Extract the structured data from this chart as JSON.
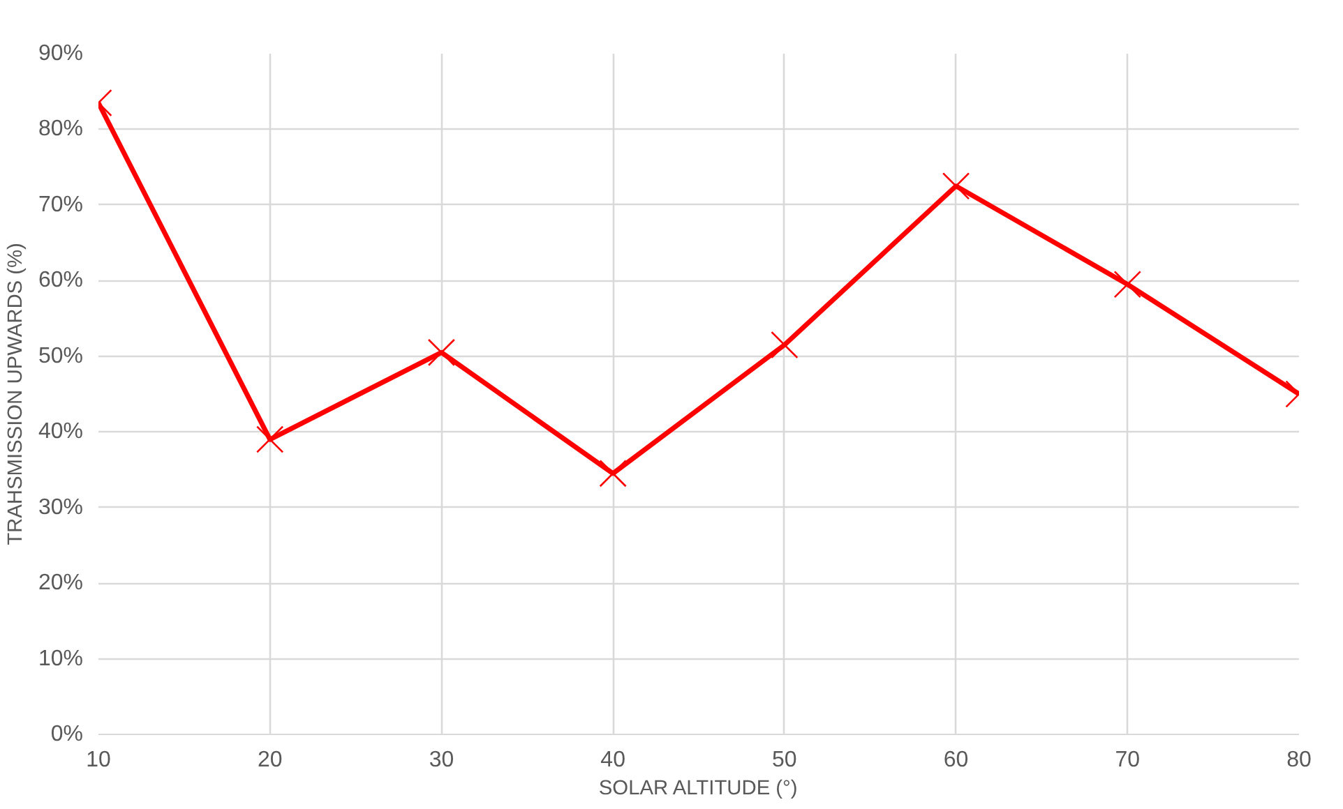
{
  "chart_data": {
    "type": "line",
    "xlabel": "SOLAR ALTITUDE (°)",
    "ylabel": "TRAHSMISSION UPWARDS (%)",
    "x": [
      10,
      20,
      30,
      40,
      50,
      60,
      70,
      80
    ],
    "series": [
      {
        "color": "#ff0000",
        "values": [
          83.5,
          39,
          50.5,
          34.5,
          51.5,
          72.5,
          59.5,
          45
        ]
      }
    ],
    "xlim": [
      10,
      80
    ],
    "xticks": [
      10,
      20,
      30,
      40,
      50,
      60,
      70,
      80
    ],
    "ylim": [
      0,
      90
    ],
    "yticks": [
      {
        "value": 0,
        "label": "0%"
      },
      {
        "value": 10,
        "label": "10%"
      },
      {
        "value": 20,
        "label": "20%"
      },
      {
        "value": 30,
        "label": "30%"
      },
      {
        "value": 40,
        "label": "40%"
      },
      {
        "value": 50,
        "label": "50%"
      },
      {
        "value": 60,
        "label": "60%"
      },
      {
        "value": 70,
        "label": "70%"
      },
      {
        "value": 80,
        "label": "80%"
      },
      {
        "value": 90,
        "label": "90%"
      }
    ],
    "grid": true,
    "marker": "cross",
    "line_style": "solid"
  }
}
